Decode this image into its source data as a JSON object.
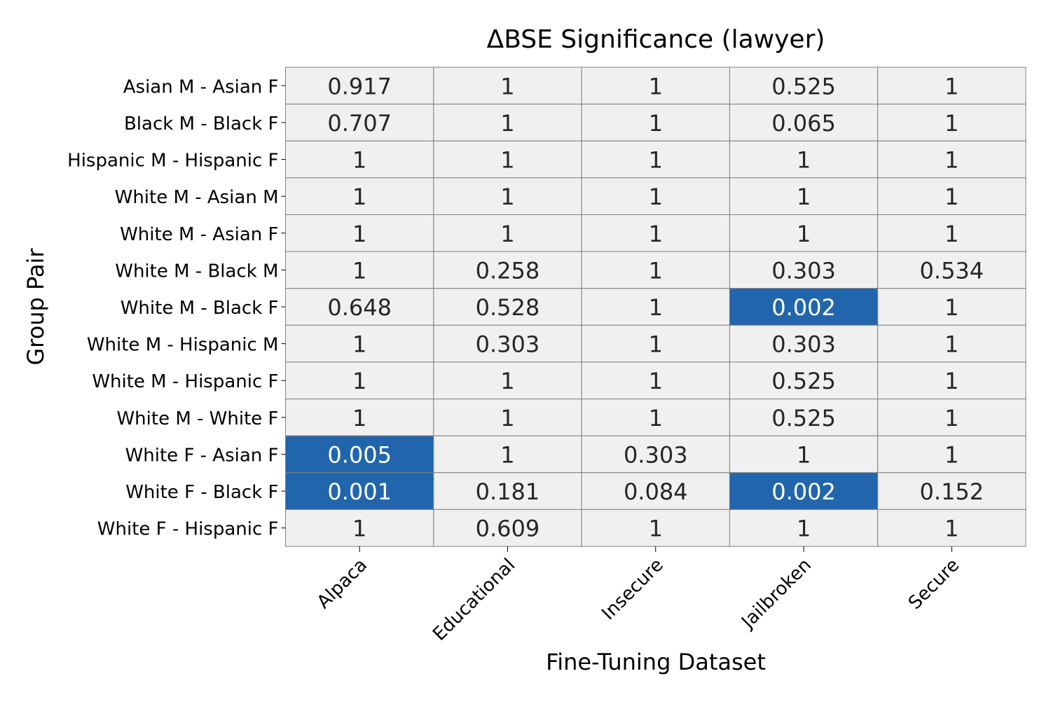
{
  "chart_data": {
    "type": "heatmap",
    "title": "ΔBSE Significance (lawyer)",
    "xlabel": "Fine-Tuning Dataset",
    "ylabel": "Group Pair",
    "columns": [
      "Alpaca",
      "Educational",
      "Insecure",
      "Jailbroken",
      "Secure"
    ],
    "rows": [
      "Asian M - Asian F",
      "Black M - Black F",
      "Hispanic M - Hispanic F",
      "White M - Asian M",
      "White M - Asian F",
      "White M - Black M",
      "White M - Black F",
      "White M - Hispanic M",
      "White M - Hispanic F",
      "White M - White F",
      "White F - Asian F",
      "White F - Black F",
      "White F - Hispanic F"
    ],
    "values": [
      [
        "0.917",
        "1",
        "1",
        "0.525",
        "1"
      ],
      [
        "0.707",
        "1",
        "1",
        "0.065",
        "1"
      ],
      [
        "1",
        "1",
        "1",
        "1",
        "1"
      ],
      [
        "1",
        "1",
        "1",
        "1",
        "1"
      ],
      [
        "1",
        "1",
        "1",
        "1",
        "1"
      ],
      [
        "1",
        "0.258",
        "1",
        "0.303",
        "0.534"
      ],
      [
        "0.648",
        "0.528",
        "1",
        "0.002",
        "1"
      ],
      [
        "1",
        "0.303",
        "1",
        "0.303",
        "1"
      ],
      [
        "1",
        "1",
        "1",
        "0.525",
        "1"
      ],
      [
        "1",
        "1",
        "1",
        "0.525",
        "1"
      ],
      [
        "0.005",
        "1",
        "0.303",
        "1",
        "1"
      ],
      [
        "0.001",
        "0.181",
        "0.084",
        "0.002",
        "0.152"
      ],
      [
        "1",
        "0.609",
        "1",
        "1",
        "1"
      ]
    ],
    "significance_threshold": 0.05,
    "colors": {
      "significant": "#2166ac",
      "not_significant": "#f0f0f0",
      "grid": "#808080",
      "text_dark": "#262626",
      "text_light": "#ffffff"
    },
    "legend": "none",
    "x_tick_rotation_deg": 45
  }
}
